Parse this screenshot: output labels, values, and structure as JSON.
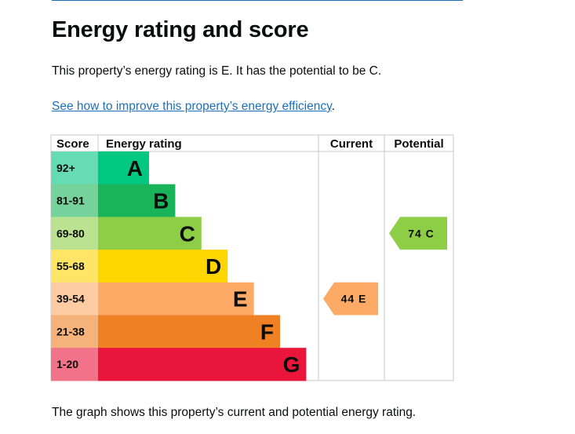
{
  "heading": "Energy rating and score",
  "summary": "This property’s energy rating is E. It has the potential to be C.",
  "link": {
    "text": "See how to improve this property’s energy efficiency",
    "suffix": "."
  },
  "footer": "The graph shows this property’s current and potential energy rating.",
  "chart_data": {
    "type": "bar",
    "columns": [
      "Score",
      "Energy rating",
      "Current",
      "Potential"
    ],
    "bands": [
      {
        "letter": "A",
        "score": "92+",
        "color": "#00c781",
        "score_color": "#66dcb4"
      },
      {
        "letter": "B",
        "score": "81-91",
        "color": "#19b459",
        "score_color": "#75d29b"
      },
      {
        "letter": "C",
        "score": "69-80",
        "color": "#8dce46",
        "score_color": "#bbe290"
      },
      {
        "letter": "D",
        "score": "55-68",
        "color": "#ffd500",
        "score_color": "#ffe566"
      },
      {
        "letter": "E",
        "score": "39-54",
        "color": "#fcaa65",
        "score_color": "#fdcca3"
      },
      {
        "letter": "F",
        "score": "21-38",
        "color": "#ef8023",
        "score_color": "#f5b37b"
      },
      {
        "letter": "G",
        "score": "1-20",
        "color": "#e9153b",
        "score_color": "#f27389"
      }
    ],
    "current": {
      "value": 44,
      "band": "E",
      "label": "44 E"
    },
    "potential": {
      "value": 74,
      "band": "C",
      "label": "74 C"
    }
  }
}
